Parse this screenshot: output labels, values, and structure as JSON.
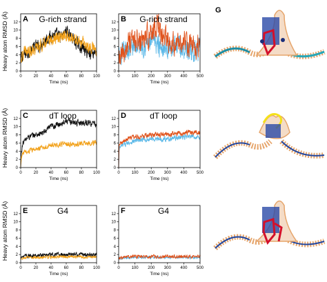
{
  "figure": {
    "y_axis_label": "Heavy atom RMSD (Å)",
    "panel_g_letter": "G"
  },
  "colors": {
    "black": "#111111",
    "orange": "#f2a11a",
    "red_orange": "#e0521b",
    "light_blue": "#5db9e8"
  },
  "chart_data": [
    {
      "panel": "A",
      "title": "G-rich strand",
      "type": "line",
      "xlabel": "Time (ns)",
      "xlim": [
        0,
        100
      ],
      "ylim": [
        0,
        14
      ],
      "xticks": [
        0,
        20,
        40,
        60,
        80,
        100
      ],
      "yticks": [
        0,
        2,
        4,
        6,
        8,
        10,
        12
      ],
      "series": [
        {
          "color": "#111111",
          "points": [
            [
              0,
              2
            ],
            [
              1,
              3.5
            ],
            [
              5,
              4
            ],
            [
              10,
              4.5
            ],
            [
              15,
              5.5
            ],
            [
              20,
              6
            ],
            [
              25,
              6
            ],
            [
              30,
              7.5
            ],
            [
              35,
              8
            ],
            [
              40,
              8.5
            ],
            [
              45,
              9
            ],
            [
              50,
              8.5
            ],
            [
              55,
              8
            ],
            [
              60,
              10
            ],
            [
              65,
              9
            ],
            [
              70,
              7.5
            ],
            [
              75,
              6.5
            ],
            [
              80,
              6
            ],
            [
              85,
              5
            ],
            [
              90,
              4.5
            ],
            [
              95,
              4.5
            ],
            [
              100,
              5
            ]
          ],
          "noise": 1.2
        },
        {
          "color": "#f2a11a",
          "points": [
            [
              0,
              3
            ],
            [
              5,
              4.5
            ],
            [
              10,
              5
            ],
            [
              20,
              5.5
            ],
            [
              30,
              6.5
            ],
            [
              40,
              7.5
            ],
            [
              50,
              8
            ],
            [
              60,
              8.5
            ],
            [
              70,
              8
            ],
            [
              80,
              7
            ],
            [
              90,
              6
            ],
            [
              100,
              5.5
            ]
          ],
          "noise": 1.2
        }
      ]
    },
    {
      "panel": "B",
      "title": "G-rich strand",
      "type": "line",
      "xlabel": "Time (ns)",
      "xlim": [
        0,
        500
      ],
      "ylim": [
        0,
        14
      ],
      "xticks": [
        0,
        100,
        200,
        300,
        400,
        500
      ],
      "yticks": [
        0,
        2,
        4,
        6,
        8,
        10,
        12
      ],
      "series": [
        {
          "color": "#5db9e8",
          "points": [
            [
              0,
              3
            ],
            [
              50,
              5
            ],
            [
              100,
              6
            ],
            [
              150,
              6.5
            ],
            [
              200,
              7
            ],
            [
              250,
              6.5
            ],
            [
              300,
              6
            ],
            [
              350,
              6
            ],
            [
              400,
              5.5
            ],
            [
              450,
              5
            ],
            [
              500,
              5
            ]
          ],
          "noise": 2.2
        },
        {
          "color": "#e0521b",
          "points": [
            [
              0,
              2
            ],
            [
              25,
              4
            ],
            [
              50,
              6
            ],
            [
              100,
              7
            ],
            [
              150,
              7.5
            ],
            [
              200,
              9
            ],
            [
              220,
              11
            ],
            [
              240,
              12
            ],
            [
              260,
              9
            ],
            [
              300,
              8
            ],
            [
              350,
              7
            ],
            [
              400,
              7
            ],
            [
              450,
              6
            ],
            [
              500,
              6
            ]
          ],
          "noise": 2.4
        }
      ]
    },
    {
      "panel": "C",
      "title": "dT loop",
      "type": "line",
      "xlabel": "Time (ns)",
      "xlim": [
        0,
        100
      ],
      "ylim": [
        0,
        14
      ],
      "xticks": [
        0,
        20,
        40,
        60,
        80,
        100
      ],
      "yticks": [
        0,
        2,
        4,
        6,
        8,
        10,
        12
      ],
      "series": [
        {
          "color": "#111111",
          "points": [
            [
              0,
              0
            ],
            [
              1,
              4
            ],
            [
              3,
              6
            ],
            [
              5,
              6.5
            ],
            [
              10,
              7.5
            ],
            [
              20,
              8
            ],
            [
              30,
              8.5
            ],
            [
              40,
              10
            ],
            [
              50,
              10.5
            ],
            [
              60,
              11.5
            ],
            [
              70,
              11
            ],
            [
              80,
              11
            ],
            [
              90,
              11
            ],
            [
              100,
              10.5
            ]
          ],
          "noise": 0.6
        },
        {
          "color": "#f2a11a",
          "points": [
            [
              0,
              0
            ],
            [
              1,
              2.5
            ],
            [
              3,
              3.5
            ],
            [
              10,
              4
            ],
            [
              20,
              4.5
            ],
            [
              30,
              5
            ],
            [
              40,
              5.5
            ],
            [
              50,
              5.5
            ],
            [
              60,
              5.8
            ],
            [
              70,
              5.5
            ],
            [
              80,
              6
            ],
            [
              90,
              6
            ],
            [
              100,
              6
            ]
          ],
          "noise": 0.5
        }
      ]
    },
    {
      "panel": "D",
      "title": "dT loop",
      "type": "line",
      "xlabel": "Time (ns)",
      "xlim": [
        0,
        500
      ],
      "ylim": [
        0,
        14
      ],
      "xticks": [
        0,
        100,
        200,
        300,
        400,
        500
      ],
      "yticks": [
        0,
        2,
        4,
        6,
        8,
        10,
        12
      ],
      "series": [
        {
          "color": "#5db9e8",
          "points": [
            [
              0,
              0
            ],
            [
              3,
              4
            ],
            [
              10,
              5
            ],
            [
              50,
              6
            ],
            [
              100,
              6.5
            ],
            [
              200,
              7
            ],
            [
              300,
              7
            ],
            [
              400,
              7.5
            ],
            [
              500,
              7.5
            ]
          ],
          "noise": 0.5
        },
        {
          "color": "#e0521b",
          "points": [
            [
              0,
              0
            ],
            [
              3,
              5
            ],
            [
              10,
              6
            ],
            [
              50,
              7
            ],
            [
              100,
              7.5
            ],
            [
              200,
              8
            ],
            [
              300,
              8
            ],
            [
              400,
              8.5
            ],
            [
              500,
              8.5
            ]
          ],
          "noise": 0.5
        }
      ]
    },
    {
      "panel": "E",
      "title": "G4",
      "type": "line",
      "xlabel": "Time (ns)",
      "xlim": [
        0,
        100
      ],
      "ylim": [
        0,
        14
      ],
      "xticks": [
        0,
        20,
        40,
        60,
        80,
        100
      ],
      "yticks": [
        0,
        2,
        4,
        6,
        8,
        10,
        12
      ],
      "series": [
        {
          "color": "#111111",
          "points": [
            [
              0,
              1.5
            ],
            [
              20,
              1.8
            ],
            [
              50,
              2
            ],
            [
              80,
              2
            ],
            [
              100,
              2
            ]
          ],
          "noise": 0.4
        },
        {
          "color": "#f2a11a",
          "points": [
            [
              0,
              1.2
            ],
            [
              20,
              1.3
            ],
            [
              50,
              1.4
            ],
            [
              80,
              1.4
            ],
            [
              100,
              1.4
            ]
          ],
          "noise": 0.3
        }
      ]
    },
    {
      "panel": "F",
      "title": "G4",
      "type": "line",
      "xlabel": "Time (ns)",
      "xlim": [
        0,
        500
      ],
      "ylim": [
        0,
        14
      ],
      "xticks": [
        0,
        100,
        200,
        300,
        400,
        500
      ],
      "yticks": [
        0,
        2,
        4,
        6,
        8,
        10,
        12
      ],
      "series": [
        {
          "color": "#5db9e8",
          "points": [
            [
              0,
              1
            ],
            [
              100,
              1.3
            ],
            [
              300,
              1.3
            ],
            [
              500,
              1.3
            ]
          ],
          "noise": 0.3
        },
        {
          "color": "#e0521b",
          "points": [
            [
              0,
              1.2
            ],
            [
              100,
              1.5
            ],
            [
              300,
              1.5
            ],
            [
              500,
              1.5
            ]
          ],
          "noise": 0.35
        }
      ]
    }
  ]
}
